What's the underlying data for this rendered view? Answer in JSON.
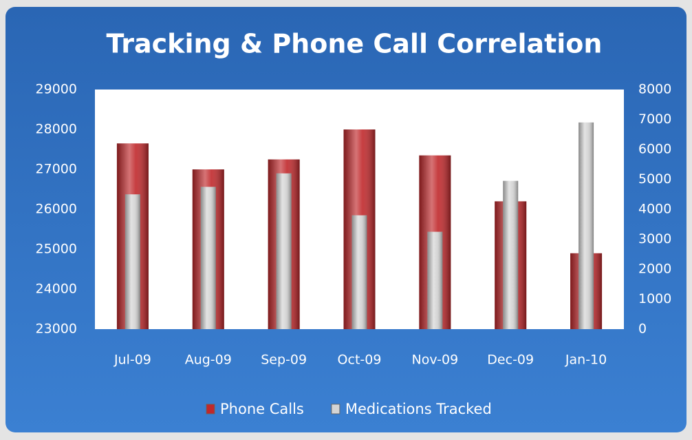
{
  "chart_data": {
    "type": "bar",
    "title": "Tracking & Phone Call Correlation",
    "categories": [
      "Jul-09",
      "Aug-09",
      "Sep-09",
      "Oct-09",
      "Nov-09",
      "Dec-09",
      "Jan-10"
    ],
    "series": [
      {
        "name": "Phone Calls",
        "color": "#c0282b",
        "values": [
          27650,
          27000,
          27250,
          28000,
          27350,
          26200,
          24900
        ]
      },
      {
        "name": "Medications Tracked",
        "color": "#d4d4d4",
        "axis": "y2",
        "values": [
          4500,
          4750,
          5200,
          3800,
          3250,
          4950,
          6900
        ]
      }
    ],
    "ylim": [
      23000,
      29000
    ],
    "yticks": [
      23000,
      24000,
      25000,
      26000,
      27000,
      28000,
      29000
    ],
    "y2lim": [
      0,
      8000
    ],
    "y2ticks": [
      0,
      1000,
      2000,
      3000,
      4000,
      5000,
      6000,
      7000,
      8000
    ],
    "grid": false,
    "legend": "bottom"
  }
}
